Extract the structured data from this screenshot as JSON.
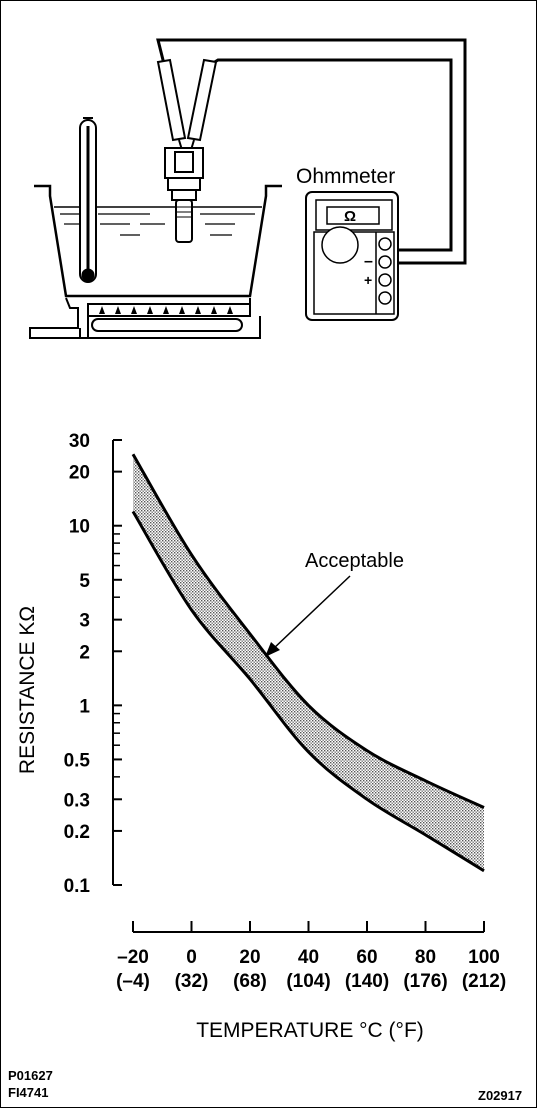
{
  "diagram": {
    "meter_label": "Ohmmeter",
    "meter_symbol": "Ω",
    "minus_sign": "–",
    "plus_sign": "+"
  },
  "chart_data": {
    "type": "area",
    "xlabel": "TEMPERATURE °C (°F)",
    "ylabel": "RESISTANCE KΩ",
    "y_scale": "log",
    "xlim": [
      -20,
      100
    ],
    "ylim": [
      0.1,
      30
    ],
    "x_ticks": [
      {
        "c": "–20",
        "f": "(–4)"
      },
      {
        "c": "0",
        "f": "(32)"
      },
      {
        "c": "20",
        "f": "(68)"
      },
      {
        "c": "40",
        "f": "(104)"
      },
      {
        "c": "60",
        "f": "(140)"
      },
      {
        "c": "80",
        "f": "(176)"
      },
      {
        "c": "100",
        "f": "(212)"
      }
    ],
    "y_ticks": [
      "30",
      "20",
      "10",
      "5",
      "3",
      "2",
      "1",
      "0.5",
      "0.3",
      "0.2",
      "0.1"
    ],
    "annotation": "Acceptable",
    "band": {
      "x": [
        -20,
        0,
        20,
        40,
        60,
        80,
        100
      ],
      "upper": [
        25,
        6.9,
        2.5,
        1.0,
        0.56,
        0.38,
        0.27
      ],
      "lower": [
        12,
        3.4,
        1.4,
        0.55,
        0.3,
        0.19,
        0.12
      ]
    },
    "grid": false
  },
  "footer": {
    "code1": "P01627",
    "code2": "FI4741",
    "code3": "Z02917"
  }
}
